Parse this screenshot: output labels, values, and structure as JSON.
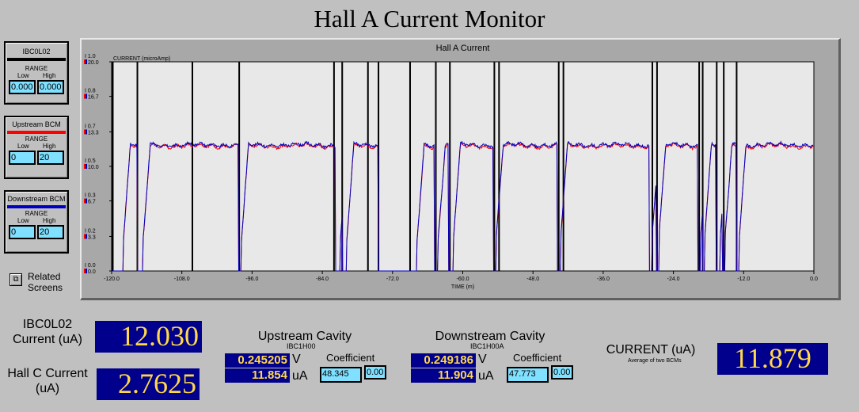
{
  "title": "Hall A Current Monitor",
  "range_boxes": [
    {
      "name": "IBC0L02",
      "range_label": "RANGE",
      "low_label": "Low",
      "high_label": "High",
      "low": "0.000",
      "high": "0.000",
      "color": "#000000"
    },
    {
      "name": "Upstream BCM",
      "range_label": "RANGE",
      "low_label": "Low",
      "high_label": "High",
      "low": "0",
      "high": "20",
      "color": "#ff0000"
    },
    {
      "name": "Downstream BCM",
      "range_label": "RANGE",
      "low_label": "Low",
      "high_label": "High",
      "low": "0",
      "high": "20",
      "color": "#0000c0"
    }
  ],
  "related_screens": {
    "label": "Related Screens",
    "icon": "windows-icon"
  },
  "chart_data": {
    "type": "line",
    "title": "Hall A Current",
    "ylabel": "CURRENT (microAmp)",
    "xlabel": "TIME (m)",
    "xlim": [
      -120,
      0
    ],
    "x_ticks": [
      "-120.0",
      "-108.0",
      "-96.0",
      "-84.0",
      "-72.0",
      "-60.0",
      "-48.0",
      "-36.0",
      "-24.0",
      "-12.0",
      "0.0"
    ],
    "y_ticks_left": [
      "1.0",
      "0.8",
      "0.7",
      "0.5",
      "0.3",
      "0.2",
      "0.0"
    ],
    "y_ticks_right": [
      "20.0",
      "16.7",
      "13.3",
      "10.0",
      "6.7",
      "3.3",
      "0.0"
    ],
    "ylim": [
      0,
      20
    ],
    "grid": false,
    "series": [
      {
        "name": "Upstream BCM",
        "color": "#ff0000"
      },
      {
        "name": "Downstream BCM",
        "color": "#0000c0"
      },
      {
        "name": "IBC0L02",
        "color": "#000000"
      }
    ],
    "beam_level_uA": 12.0,
    "trip_times_min": [
      -119.8,
      -115.6,
      -106.2,
      -98.2,
      -82.0,
      -80.6,
      -76.2,
      -74.4,
      -69.0,
      -64.6,
      -62.2,
      -54.6,
      -53.8,
      -43.6,
      -42.8,
      -27.6,
      -26.8,
      -19.6,
      -19.0,
      -16.6,
      -15.4,
      -13.2
    ],
    "outage_intervals_min": [
      [
        -120.0,
        -118.0
      ],
      [
        -115.6,
        -114.6
      ],
      [
        -98.3,
        -97.8
      ],
      [
        -81.8,
        -80.9
      ],
      [
        -80.6,
        -79.8
      ],
      [
        -74.4,
        -67.8
      ],
      [
        -64.8,
        -64.2
      ],
      [
        -62.4,
        -61.6
      ],
      [
        -54.8,
        -54.3
      ],
      [
        -43.8,
        -43.3
      ],
      [
        -28.1,
        -27.7
      ],
      [
        -26.9,
        -26.5
      ],
      [
        -19.8,
        -19.4
      ],
      [
        -19.0,
        -18.7
      ],
      [
        -16.7,
        -16.0
      ],
      [
        -15.6,
        -15.2
      ],
      [
        -13.3,
        -12.8
      ]
    ]
  },
  "ibc": {
    "label": "IBC0L02 Current (uA)",
    "value": "12.030"
  },
  "hallc": {
    "label": "Hall C Current (uA)",
    "value": "2.7625"
  },
  "upstream": {
    "title": "Upstream Cavity",
    "sub": "IBC1H00",
    "volts": "0.245205",
    "v_unit": "V",
    "amps": "11.854",
    "a_unit": "uA",
    "coef_label": "Coefficient",
    "coef": "48.345",
    "offset": "0.00"
  },
  "downstream": {
    "title": "Downstream Cavity",
    "sub": "IBC1H00A",
    "volts": "0.249186",
    "v_unit": "V",
    "amps": "11.904",
    "a_unit": "uA",
    "coef_label": "Coefficient",
    "coef": "47.773",
    "offset": "0.00"
  },
  "current": {
    "label": "CURRENT (uA)",
    "sub": "Average of two BCMs",
    "value": "11.879"
  }
}
